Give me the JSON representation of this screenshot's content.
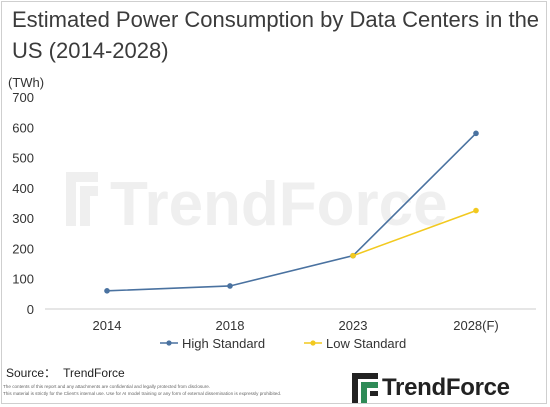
{
  "title": "Estimated Power Consumption by Data Centers in the US (2014-2028)",
  "unit_label": "(TWh)",
  "source_label": "Source：",
  "source_value": "TrendForce",
  "disclaimer": [
    "The contents of this report and any attachments are confidential and legally protected from disclosure.",
    "This material is strictly for the Client's internal use. Use for AI model training or any form of external dissemination is expressly prohibited."
  ],
  "logo_text": "TrendForce",
  "watermark_text": "TrendForce",
  "colors": {
    "high": "#4a72a0",
    "low": "#f2c91f",
    "axis": "#cccccc",
    "watermark": "#efefef"
  },
  "chart_data": {
    "type": "line",
    "categories": [
      "2014",
      "2018",
      "2023",
      "2028(F)"
    ],
    "ylim": [
      0,
      700
    ],
    "yticks": [
      0,
      100,
      200,
      300,
      400,
      500,
      600,
      700
    ],
    "grid": false,
    "legend_position": "bottom",
    "xlabel": "",
    "ylabel": "(TWh)",
    "series": [
      {
        "name": "High Standard",
        "color": "#4a72a0",
        "values": [
          60,
          76,
          176,
          580
        ]
      },
      {
        "name": "Low Standard",
        "color": "#f2c91f",
        "values": [
          null,
          null,
          176,
          325
        ]
      }
    ]
  }
}
